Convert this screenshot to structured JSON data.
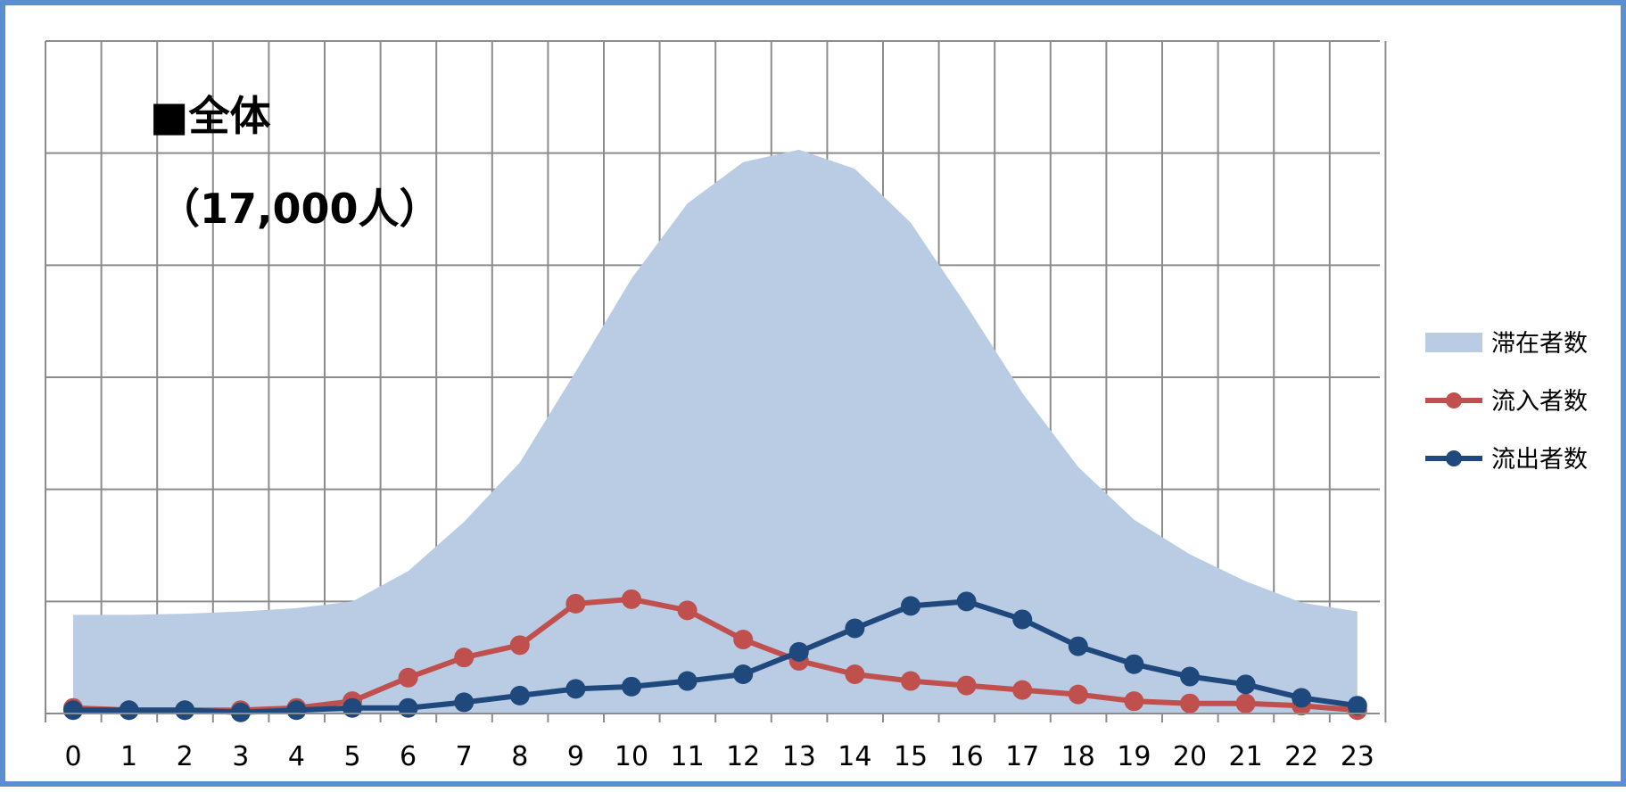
{
  "chart_data": {
    "type": "area",
    "title": "■全体",
    "subtitle": "（17,000人）",
    "x": [
      0,
      1,
      2,
      3,
      4,
      5,
      6,
      7,
      8,
      9,
      10,
      11,
      12,
      13,
      14,
      15,
      16,
      17,
      18,
      19,
      20,
      21,
      22,
      23
    ],
    "xlabel": "",
    "ylabel": "",
    "ylim": [
      0,
      6
    ],
    "grid": true,
    "legend": "right",
    "series": [
      {
        "name": "滞在者数",
        "type": "area",
        "color": "#b9cce4",
        "values": [
          0.88,
          0.88,
          0.89,
          0.91,
          0.94,
          1.0,
          1.27,
          1.71,
          2.24,
          3.05,
          3.88,
          4.55,
          4.92,
          5.03,
          4.86,
          4.38,
          3.64,
          2.86,
          2.2,
          1.73,
          1.42,
          1.18,
          0.99,
          0.91
        ]
      },
      {
        "name": "流入者数",
        "type": "line",
        "color": "#c0504d",
        "values": [
          0.05,
          0.03,
          0.03,
          0.03,
          0.05,
          0.11,
          0.32,
          0.5,
          0.61,
          0.98,
          1.02,
          0.92,
          0.66,
          0.47,
          0.35,
          0.29,
          0.25,
          0.21,
          0.17,
          0.11,
          0.09,
          0.09,
          0.07,
          0.03
        ]
      },
      {
        "name": "流出者数",
        "type": "line",
        "color": "#1f497d",
        "values": [
          0.03,
          0.03,
          0.03,
          0.01,
          0.03,
          0.05,
          0.05,
          0.1,
          0.16,
          0.22,
          0.24,
          0.29,
          0.35,
          0.55,
          0.76,
          0.96,
          1.0,
          0.84,
          0.6,
          0.44,
          0.33,
          0.26,
          0.14,
          0.07
        ]
      }
    ]
  }
}
